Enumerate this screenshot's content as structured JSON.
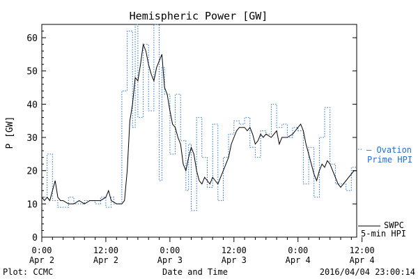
{
  "chart_data": {
    "type": "line",
    "title": "Hemispheric Power [GW]",
    "ylabel": "P [GW]",
    "xlabel": "Date and Time",
    "ylim": [
      0,
      64
    ],
    "yticks": [
      0,
      10,
      20,
      30,
      40,
      50,
      60
    ],
    "xlim": [
      0,
      59
    ],
    "x_unit": "hours since 2016-04-02 00:00",
    "xticks": [
      {
        "x": 0,
        "time": "0:00",
        "date": "Apr 2"
      },
      {
        "x": 12,
        "time": "12:00",
        "date": "Apr 2"
      },
      {
        "x": 24,
        "time": "0:00",
        "date": "Apr 3"
      },
      {
        "x": 36,
        "time": "12:00",
        "date": "Apr 3"
      },
      {
        "x": 48,
        "time": "0:00",
        "date": "Apr 4"
      },
      {
        "x": 60,
        "time": "12:00",
        "date": "Apr 4"
      }
    ],
    "series": [
      {
        "name": "Ovation Prime HPI",
        "legend_lines": [
          "— Ovation",
          "Prime HPI"
        ],
        "color": "#1f6fd1",
        "style": "dotted-step",
        "points": [
          [
            0,
            12
          ],
          [
            1,
            12
          ],
          [
            1,
            25
          ],
          [
            2,
            25
          ],
          [
            2,
            11
          ],
          [
            3,
            11
          ],
          [
            3,
            9
          ],
          [
            5,
            9
          ],
          [
            5,
            12
          ],
          [
            6,
            12
          ],
          [
            6,
            10
          ],
          [
            8,
            10
          ],
          [
            8,
            11
          ],
          [
            10,
            11
          ],
          [
            10,
            10
          ],
          [
            11,
            10
          ],
          [
            11,
            12
          ],
          [
            12,
            12
          ],
          [
            12,
            9
          ],
          [
            13,
            9
          ],
          [
            13,
            12
          ],
          [
            13.5,
            12
          ],
          [
            13.5,
            10
          ],
          [
            15,
            10
          ],
          [
            15,
            44
          ],
          [
            16,
            44
          ],
          [
            16,
            62
          ],
          [
            17,
            62
          ],
          [
            17,
            33
          ],
          [
            17.5,
            33
          ],
          [
            17.5,
            64
          ],
          [
            18,
            64
          ],
          [
            18,
            36
          ],
          [
            19,
            36
          ],
          [
            19,
            58
          ],
          [
            20,
            58
          ],
          [
            20,
            38
          ],
          [
            21,
            38
          ],
          [
            21,
            64
          ],
          [
            22,
            64
          ],
          [
            22,
            17
          ],
          [
            22.5,
            17
          ],
          [
            22.5,
            51
          ],
          [
            23,
            51
          ],
          [
            23,
            43
          ],
          [
            24,
            43
          ],
          [
            24,
            25
          ],
          [
            25,
            25
          ],
          [
            25,
            43
          ],
          [
            26,
            43
          ],
          [
            26,
            29
          ],
          [
            27,
            29
          ],
          [
            27,
            14
          ],
          [
            27.5,
            14
          ],
          [
            27.5,
            28
          ],
          [
            28,
            28
          ],
          [
            28,
            8
          ],
          [
            29,
            8
          ],
          [
            29,
            36
          ],
          [
            30,
            36
          ],
          [
            30,
            24
          ],
          [
            31,
            24
          ],
          [
            31,
            15
          ],
          [
            32,
            15
          ],
          [
            32,
            34
          ],
          [
            33,
            34
          ],
          [
            33,
            11
          ],
          [
            34,
            11
          ],
          [
            34,
            24
          ],
          [
            35,
            24
          ],
          [
            35,
            31
          ],
          [
            36,
            31
          ],
          [
            36,
            35
          ],
          [
            37,
            35
          ],
          [
            37,
            34
          ],
          [
            38,
            34
          ],
          [
            38,
            36
          ],
          [
            39,
            36
          ],
          [
            39,
            27
          ],
          [
            40,
            27
          ],
          [
            40,
            24
          ],
          [
            41,
            24
          ],
          [
            41,
            32
          ],
          [
            42,
            32
          ],
          [
            42,
            31
          ],
          [
            43,
            31
          ],
          [
            43,
            40
          ],
          [
            44,
            40
          ],
          [
            44,
            33
          ],
          [
            45,
            33
          ],
          [
            45,
            34
          ],
          [
            46,
            34
          ],
          [
            46,
            30
          ],
          [
            47,
            30
          ],
          [
            47,
            33
          ],
          [
            48,
            33
          ],
          [
            48,
            32
          ],
          [
            49,
            32
          ],
          [
            49,
            16
          ],
          [
            50,
            16
          ],
          [
            50,
            27
          ],
          [
            51,
            27
          ],
          [
            51,
            12
          ],
          [
            52,
            12
          ],
          [
            52,
            30
          ],
          [
            53,
            30
          ],
          [
            53,
            39
          ],
          [
            54,
            39
          ],
          [
            54,
            22
          ],
          [
            55,
            22
          ],
          [
            55,
            16
          ],
          [
            57,
            16
          ],
          [
            57,
            14
          ],
          [
            58,
            14
          ],
          [
            58,
            21
          ],
          [
            59,
            21
          ]
        ]
      },
      {
        "name": "SWPC 5-min HPI",
        "legend_lines": [
          "SWPC",
          "5-min HPI"
        ],
        "color": "#000000",
        "style": "solid",
        "points": [
          [
            0,
            12
          ],
          [
            0.5,
            11
          ],
          [
            1,
            12
          ],
          [
            1.5,
            11
          ],
          [
            2,
            14
          ],
          [
            2.5,
            17
          ],
          [
            3,
            12
          ],
          [
            3.5,
            11
          ],
          [
            4,
            11
          ],
          [
            5,
            10
          ],
          [
            6,
            10
          ],
          [
            7,
            11
          ],
          [
            8,
            10
          ],
          [
            9,
            11
          ],
          [
            10,
            11
          ],
          [
            11,
            11
          ],
          [
            12,
            12
          ],
          [
            12.5,
            14
          ],
          [
            13,
            11
          ],
          [
            14,
            10
          ],
          [
            15,
            10
          ],
          [
            15.5,
            11
          ],
          [
            16,
            20
          ],
          [
            16.5,
            35
          ],
          [
            17,
            40
          ],
          [
            17.5,
            48
          ],
          [
            18,
            47
          ],
          [
            18.5,
            52
          ],
          [
            19,
            58
          ],
          [
            19.5,
            56
          ],
          [
            20,
            52
          ],
          [
            20.5,
            49
          ],
          [
            21,
            47
          ],
          [
            21.5,
            51
          ],
          [
            22,
            53
          ],
          [
            22.5,
            55
          ],
          [
            23,
            45
          ],
          [
            23.5,
            43
          ],
          [
            24,
            38
          ],
          [
            24.5,
            34
          ],
          [
            25,
            33
          ],
          [
            25.5,
            30
          ],
          [
            26,
            28
          ],
          [
            26.5,
            22
          ],
          [
            27,
            20
          ],
          [
            27.5,
            24
          ],
          [
            28,
            27
          ],
          [
            28.5,
            25
          ],
          [
            29,
            20
          ],
          [
            29.5,
            17
          ],
          [
            30,
            16
          ],
          [
            30.5,
            18
          ],
          [
            31,
            17
          ],
          [
            31.5,
            16
          ],
          [
            32,
            18
          ],
          [
            32.5,
            17
          ],
          [
            33,
            16
          ],
          [
            33.5,
            18
          ],
          [
            34,
            20
          ],
          [
            34.5,
            22
          ],
          [
            35,
            24
          ],
          [
            35.5,
            28
          ],
          [
            36,
            30
          ],
          [
            36.5,
            32
          ],
          [
            37,
            33
          ],
          [
            38,
            33
          ],
          [
            38.5,
            32
          ],
          [
            39,
            33
          ],
          [
            39.5,
            31
          ],
          [
            40,
            28
          ],
          [
            40.5,
            29
          ],
          [
            41,
            31
          ],
          [
            41.5,
            30
          ],
          [
            42,
            31
          ],
          [
            43,
            30
          ],
          [
            44,
            32
          ],
          [
            44.5,
            28
          ],
          [
            45,
            30
          ],
          [
            46,
            30
          ],
          [
            47,
            31
          ],
          [
            48,
            33
          ],
          [
            48.5,
            34
          ],
          [
            49,
            32
          ],
          [
            49.5,
            28
          ],
          [
            50,
            25
          ],
          [
            50.5,
            22
          ],
          [
            51,
            19
          ],
          [
            51.5,
            17
          ],
          [
            52,
            20
          ],
          [
            52.5,
            22
          ],
          [
            53,
            21
          ],
          [
            53.5,
            23
          ],
          [
            54,
            22
          ],
          [
            54.5,
            20
          ],
          [
            55,
            18
          ],
          [
            55.5,
            16
          ],
          [
            56,
            15
          ],
          [
            56.5,
            16
          ],
          [
            57,
            17
          ],
          [
            57.5,
            18
          ],
          [
            58,
            19
          ],
          [
            58.5,
            20
          ],
          [
            59,
            20
          ]
        ]
      }
    ]
  },
  "footer": {
    "plot_credit": "Plot: CCMC",
    "timestamp": "2016/04/04 23:00:14"
  }
}
